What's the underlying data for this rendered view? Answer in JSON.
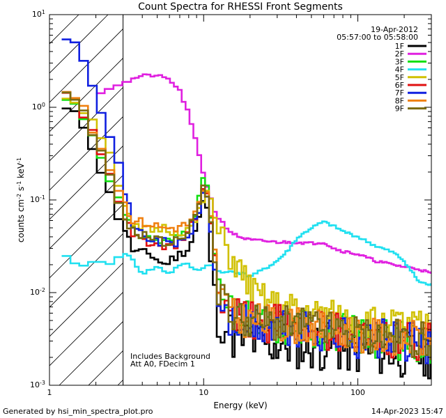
{
  "chart_data": {
    "type": "line",
    "title": "Count Spectra for RHESSI Front Segments",
    "xlabel": "Energy (keV)",
    "ylabel": "counts cm-2 s-1 keV-1",
    "ylabel_parts": {
      "base": "counts cm",
      "exp1": "-2",
      "mid": " s",
      "exp2": "-1",
      "mid2": " keV",
      "exp3": "-1"
    },
    "xscale": "log",
    "yscale": "log",
    "xlim": [
      1,
      300
    ],
    "ylim": [
      0.001,
      10
    ],
    "x_ticks": [
      {
        "value": 1,
        "label": "1"
      },
      {
        "value": 10,
        "label": "10"
      },
      {
        "value": 100,
        "label": "100"
      }
    ],
    "y_ticks": [
      {
        "value": 0.001,
        "base": "10",
        "exp": "-3"
      },
      {
        "value": 0.01,
        "base": "10",
        "exp": "-2"
      },
      {
        "value": 0.1,
        "base": "10",
        "exp": "-1"
      },
      {
        "value": 1,
        "base": "10",
        "exp": "0"
      },
      {
        "value": 10,
        "base": "10",
        "exp": "1"
      }
    ],
    "date": "19-Apr-2012",
    "time_range": "05:57:00 to 05:58:00",
    "annotations": [
      "Includes Background",
      "Att A0, FDecim 1"
    ],
    "hatched_region": [
      1,
      3
    ],
    "legend_position": "top-right",
    "series": [
      {
        "name": "1F",
        "color": "#000000",
        "noise": 0.55,
        "seed": 11,
        "points": [
          [
            1.2,
            1.0
          ],
          [
            1.55,
            0.78
          ],
          [
            1.8,
            0.5
          ],
          [
            2.1,
            0.24
          ],
          [
            2.4,
            0.13
          ],
          [
            2.7,
            0.075
          ],
          [
            3.0,
            0.055
          ],
          [
            3.5,
            0.028
          ],
          [
            4.5,
            0.026
          ],
          [
            5.5,
            0.02
          ],
          [
            6.5,
            0.024
          ],
          [
            8.0,
            0.03
          ],
          [
            9.0,
            0.05
          ],
          [
            10.3,
            0.12
          ],
          [
            11.2,
            0.02
          ],
          [
            12.5,
            0.006
          ],
          [
            15,
            0.0035
          ],
          [
            20,
            0.003
          ],
          [
            30,
            0.0028
          ],
          [
            50,
            0.0027
          ],
          [
            100,
            0.0024
          ],
          [
            200,
            0.0022
          ],
          [
            300,
            0.0022
          ]
        ]
      },
      {
        "name": "2F",
        "color": "#e020e0",
        "noise": 0.03,
        "seed": 21,
        "points": [
          [
            2.0,
            1.4
          ],
          [
            3.0,
            1.85
          ],
          [
            4.0,
            2.2
          ],
          [
            5.0,
            2.2
          ],
          [
            6.0,
            2.0
          ],
          [
            7.0,
            1.5
          ],
          [
            8.0,
            0.85
          ],
          [
            9.0,
            0.4
          ],
          [
            10.0,
            0.19
          ],
          [
            11.0,
            0.11
          ],
          [
            12.0,
            0.07
          ],
          [
            13.5,
            0.055
          ],
          [
            15,
            0.045
          ],
          [
            17,
            0.04
          ],
          [
            20,
            0.037
          ],
          [
            25,
            0.036
          ],
          [
            30,
            0.035
          ],
          [
            40,
            0.035
          ],
          [
            50,
            0.034
          ],
          [
            60,
            0.035
          ],
          [
            70,
            0.03
          ],
          [
            80,
            0.028
          ],
          [
            100,
            0.026
          ],
          [
            130,
            0.022
          ],
          [
            170,
            0.02
          ],
          [
            200,
            0.019
          ],
          [
            250,
            0.018
          ],
          [
            300,
            0.016
          ]
        ]
      },
      {
        "name": "3F",
        "color": "#10e010",
        "noise": 0.45,
        "seed": 31,
        "points": [
          [
            1.2,
            1.3
          ],
          [
            1.55,
            1.0
          ],
          [
            1.8,
            0.62
          ],
          [
            2.1,
            0.35
          ],
          [
            2.4,
            0.2
          ],
          [
            2.7,
            0.12
          ],
          [
            3.0,
            0.075
          ],
          [
            3.5,
            0.045
          ],
          [
            4.5,
            0.038
          ],
          [
            5.5,
            0.035
          ],
          [
            6.5,
            0.038
          ],
          [
            8.0,
            0.05
          ],
          [
            9.0,
            0.08
          ],
          [
            10.3,
            0.2
          ],
          [
            11.2,
            0.06
          ],
          [
            12.5,
            0.01
          ],
          [
            15,
            0.0055
          ],
          [
            20,
            0.0048
          ],
          [
            30,
            0.0045
          ],
          [
            50,
            0.0042
          ],
          [
            100,
            0.0035
          ],
          [
            200,
            0.003
          ],
          [
            300,
            0.0028
          ]
        ]
      },
      {
        "name": "4F",
        "color": "#20e0f0",
        "noise": 0.03,
        "seed": 41,
        "points": [
          [
            1.2,
            0.028
          ],
          [
            1.4,
            0.02
          ],
          [
            1.7,
            0.02
          ],
          [
            2.0,
            0.022
          ],
          [
            2.5,
            0.02
          ],
          [
            3.0,
            0.028
          ],
          [
            3.5,
            0.022
          ],
          [
            4.0,
            0.016
          ],
          [
            5.0,
            0.019
          ],
          [
            6.0,
            0.016
          ],
          [
            7.0,
            0.02
          ],
          [
            8.0,
            0.02
          ],
          [
            9.0,
            0.017
          ],
          [
            10.0,
            0.019
          ],
          [
            11.0,
            0.02
          ],
          [
            13.0,
            0.016
          ],
          [
            15,
            0.017
          ],
          [
            18,
            0.016
          ],
          [
            20,
            0.015
          ],
          [
            25,
            0.018
          ],
          [
            30,
            0.022
          ],
          [
            35,
            0.028
          ],
          [
            40,
            0.038
          ],
          [
            50,
            0.05
          ],
          [
            60,
            0.058
          ],
          [
            70,
            0.052
          ],
          [
            80,
            0.046
          ],
          [
            100,
            0.04
          ],
          [
            130,
            0.032
          ],
          [
            170,
            0.027
          ],
          [
            200,
            0.022
          ],
          [
            250,
            0.013
          ],
          [
            300,
            0.012
          ]
        ]
      },
      {
        "name": "5F",
        "color": "#d0c000",
        "noise": 0.35,
        "seed": 51,
        "points": [
          [
            1.2,
            1.4
          ],
          [
            1.55,
            1.1
          ],
          [
            1.8,
            0.8
          ],
          [
            2.1,
            0.55
          ],
          [
            2.4,
            0.4
          ],
          [
            2.7,
            0.2
          ],
          [
            3.0,
            0.09
          ],
          [
            3.5,
            0.05
          ],
          [
            4.5,
            0.047
          ],
          [
            5.5,
            0.05
          ],
          [
            6.5,
            0.045
          ],
          [
            8.0,
            0.047
          ],
          [
            9.0,
            0.06
          ],
          [
            10.3,
            0.12
          ],
          [
            11.2,
            0.1
          ],
          [
            12.5,
            0.04
          ],
          [
            15,
            0.025
          ],
          [
            18,
            0.015
          ],
          [
            22,
            0.009
          ],
          [
            30,
            0.007
          ],
          [
            50,
            0.006
          ],
          [
            100,
            0.005
          ],
          [
            200,
            0.0045
          ],
          [
            300,
            0.004
          ]
        ]
      },
      {
        "name": "6F",
        "color": "#e01010",
        "noise": 0.45,
        "seed": 61,
        "points": [
          [
            1.2,
            1.5
          ],
          [
            1.55,
            1.1
          ],
          [
            1.8,
            0.65
          ],
          [
            2.1,
            0.35
          ],
          [
            2.4,
            0.2
          ],
          [
            2.7,
            0.11
          ],
          [
            3.0,
            0.07
          ],
          [
            3.5,
            0.04
          ],
          [
            4.5,
            0.035
          ],
          [
            5.5,
            0.03
          ],
          [
            6.5,
            0.03
          ],
          [
            8.0,
            0.045
          ],
          [
            9.0,
            0.07
          ],
          [
            10.3,
            0.17
          ],
          [
            11.2,
            0.05
          ],
          [
            12.5,
            0.01
          ],
          [
            15,
            0.0055
          ],
          [
            20,
            0.0048
          ],
          [
            30,
            0.0045
          ],
          [
            50,
            0.0042
          ],
          [
            100,
            0.0035
          ],
          [
            200,
            0.003
          ],
          [
            300,
            0.0028
          ]
        ]
      },
      {
        "name": "7F",
        "color": "#1020e0",
        "noise": 0.45,
        "seed": 71,
        "points": [
          [
            1.2,
            6.0
          ],
          [
            1.4,
            6.0
          ],
          [
            1.55,
            5.0
          ],
          [
            1.7,
            3.2
          ],
          [
            2.0,
            1.5
          ],
          [
            2.3,
            0.7
          ],
          [
            2.6,
            0.35
          ],
          [
            3.0,
            0.16
          ],
          [
            3.5,
            0.05
          ],
          [
            4.5,
            0.038
          ],
          [
            5.5,
            0.035
          ],
          [
            6.5,
            0.033
          ],
          [
            8.0,
            0.04
          ],
          [
            9.0,
            0.06
          ],
          [
            10.3,
            0.15
          ],
          [
            11.2,
            0.04
          ],
          [
            12.5,
            0.008
          ],
          [
            15,
            0.0048
          ],
          [
            20,
            0.0043
          ],
          [
            30,
            0.004
          ],
          [
            50,
            0.0038
          ],
          [
            100,
            0.0032
          ],
          [
            200,
            0.003
          ],
          [
            300,
            0.0028
          ]
        ]
      },
      {
        "name": "8F",
        "color": "#f08010",
        "noise": 0.4,
        "seed": 81,
        "points": [
          [
            1.2,
            1.6
          ],
          [
            1.55,
            1.2
          ],
          [
            1.8,
            0.7
          ],
          [
            2.1,
            0.4
          ],
          [
            2.4,
            0.25
          ],
          [
            2.7,
            0.16
          ],
          [
            3.0,
            0.1
          ],
          [
            3.5,
            0.06
          ],
          [
            4.5,
            0.055
          ],
          [
            5.5,
            0.05
          ],
          [
            6.5,
            0.05
          ],
          [
            8.0,
            0.055
          ],
          [
            9.0,
            0.075
          ],
          [
            10.3,
            0.14
          ],
          [
            11.2,
            0.06
          ],
          [
            12.5,
            0.012
          ],
          [
            15,
            0.0055
          ],
          [
            20,
            0.005
          ],
          [
            30,
            0.0046
          ],
          [
            50,
            0.0043
          ],
          [
            100,
            0.0036
          ],
          [
            200,
            0.0032
          ],
          [
            300,
            0.003
          ]
        ]
      },
      {
        "name": "9F",
        "color": "#7a6a10",
        "noise": 0.4,
        "seed": 91,
        "points": [
          [
            1.2,
            1.45
          ],
          [
            1.55,
            1.05
          ],
          [
            1.8,
            0.65
          ],
          [
            2.1,
            0.35
          ],
          [
            2.4,
            0.2
          ],
          [
            2.7,
            0.11
          ],
          [
            3.0,
            0.07
          ],
          [
            3.5,
            0.045
          ],
          [
            4.5,
            0.04
          ],
          [
            5.5,
            0.035
          ],
          [
            6.5,
            0.035
          ],
          [
            8.0,
            0.048
          ],
          [
            9.0,
            0.075
          ],
          [
            10.3,
            0.16
          ],
          [
            11.2,
            0.05
          ],
          [
            12.5,
            0.01
          ],
          [
            15,
            0.0058
          ],
          [
            20,
            0.005
          ],
          [
            30,
            0.0046
          ],
          [
            50,
            0.0043
          ],
          [
            100,
            0.0036
          ],
          [
            200,
            0.0032
          ],
          [
            300,
            0.003
          ]
        ]
      }
    ]
  },
  "footer": {
    "generated_by": "Generated by hsi_min_spectra_plot.pro",
    "timestamp": "14-Apr-2023 15:47"
  }
}
